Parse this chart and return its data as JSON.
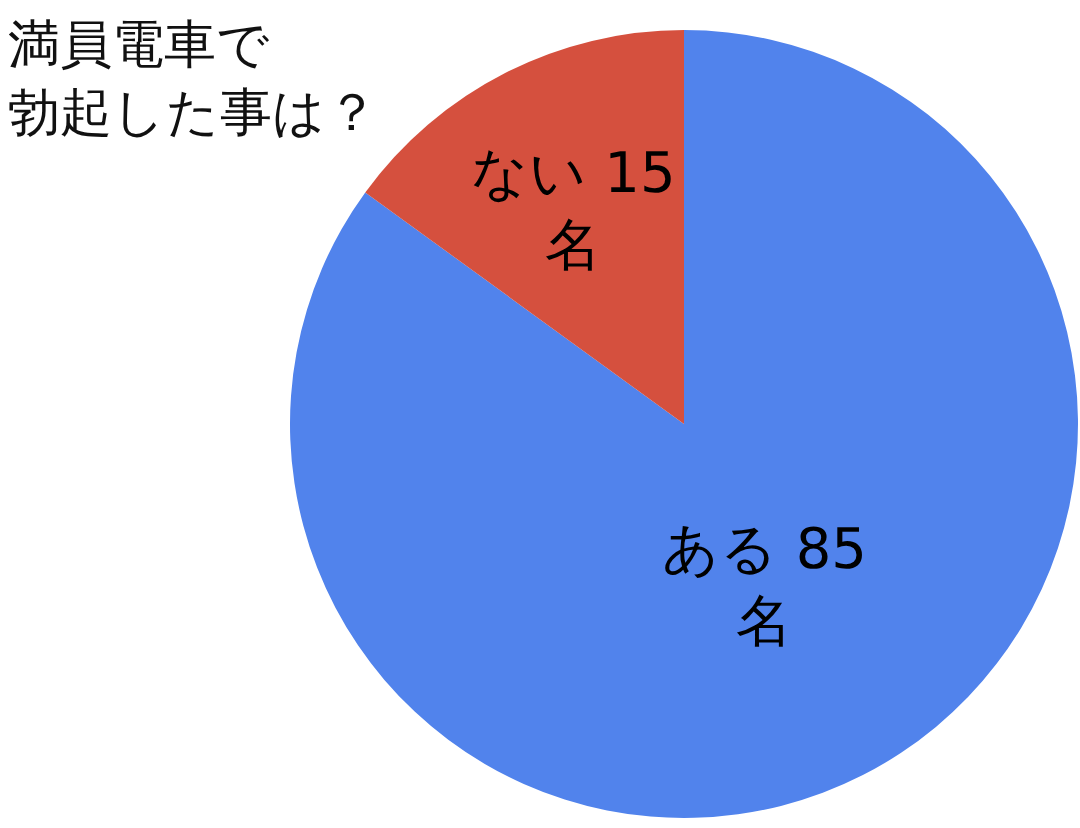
{
  "chart_data": {
    "type": "pie",
    "title": "満員電車で勃起した事は？",
    "categories": [
      "ある",
      "ない"
    ],
    "values": [
      85,
      15
    ],
    "colors": [
      "#5183ec",
      "#d5503e"
    ],
    "value_labels": [
      "85 名",
      "15 名"
    ]
  }
}
